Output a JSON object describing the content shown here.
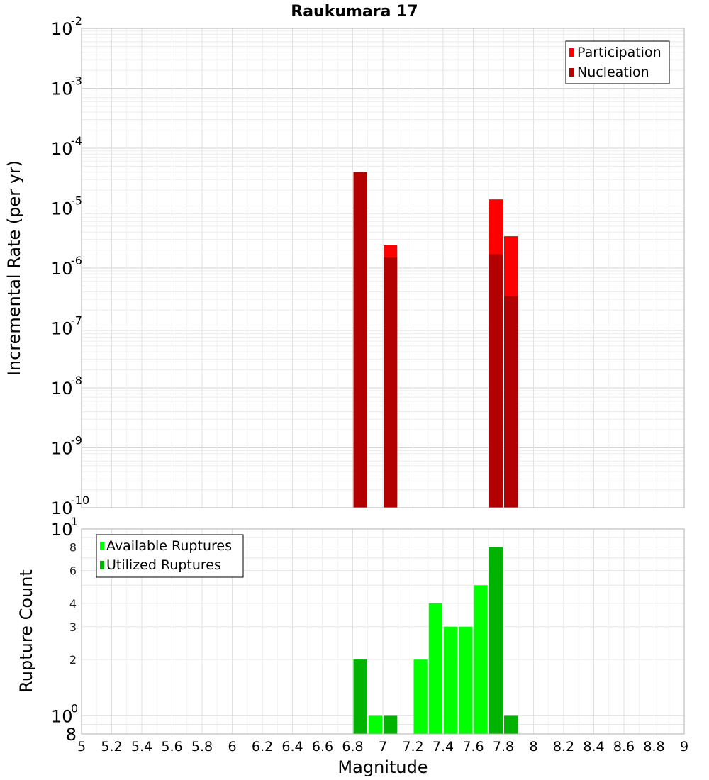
{
  "chart_data": [
    {
      "type": "bar",
      "title": "Raukumara 17",
      "ylabel": "Incremental Rate (per yr)",
      "y_scale": "log",
      "ylim": [
        1e-10,
        0.01
      ],
      "xlim": [
        5,
        9
      ],
      "y_ticks": [
        {
          "base": "10",
          "exp": "-2"
        },
        {
          "base": "10",
          "exp": "-3"
        },
        {
          "base": "10",
          "exp": "-4"
        },
        {
          "base": "10",
          "exp": "-5"
        },
        {
          "base": "10",
          "exp": "-6"
        },
        {
          "base": "10",
          "exp": "-7"
        },
        {
          "base": "10",
          "exp": "-8"
        },
        {
          "base": "10",
          "exp": "-9"
        },
        {
          "base": "10",
          "exp": "-10"
        }
      ],
      "legend_position": "top-right",
      "grid": true,
      "series": [
        {
          "name": "Participation",
          "color": "#ff0000",
          "points": [
            [
              6.85,
              4e-05
            ],
            [
              7.05,
              2.4e-06
            ],
            [
              7.75,
              1.4e-05
            ],
            [
              7.85,
              3.4e-06
            ]
          ]
        },
        {
          "name": "Nucleation",
          "color": "#b30000",
          "points": [
            [
              6.85,
              4e-05
            ],
            [
              7.05,
              1.5e-06
            ],
            [
              7.75,
              1.7e-06
            ],
            [
              7.85,
              3.4e-07
            ]
          ]
        }
      ]
    },
    {
      "type": "bar",
      "ylabel": "Rupture Count",
      "xlabel": "Magnitude",
      "y_scale": "log",
      "ylim": [
        0.8,
        10
      ],
      "xlim": [
        5,
        9
      ],
      "y_ticks_major": [
        {
          "value": 10,
          "base": "10",
          "exp": "1"
        },
        {
          "value": 1,
          "base": "10",
          "exp": "0"
        }
      ],
      "y_ticks_minor": [
        {
          "value": 8,
          "label": "8"
        },
        {
          "value": 6,
          "label": "6"
        },
        {
          "value": 4,
          "label": "4"
        },
        {
          "value": 3,
          "label": "3"
        },
        {
          "value": 2,
          "label": "2"
        }
      ],
      "y_bottom_label": "8",
      "x_ticks": [
        "5",
        "5.2",
        "5.4",
        "5.6",
        "5.8",
        "6",
        "6.2",
        "6.4",
        "6.6",
        "6.8",
        "7",
        "7.2",
        "7.4",
        "7.6",
        "7.8",
        "8",
        "8.2",
        "8.4",
        "8.6",
        "8.8",
        "9"
      ],
      "legend_position": "top-left",
      "grid": true,
      "series": [
        {
          "name": "Available Ruptures",
          "color": "#00ff00",
          "points": [
            [
              6.85,
              2
            ],
            [
              6.95,
              1
            ],
            [
              7.05,
              1
            ],
            [
              7.25,
              2
            ],
            [
              7.35,
              4
            ],
            [
              7.45,
              3
            ],
            [
              7.55,
              3
            ],
            [
              7.65,
              5
            ],
            [
              7.75,
              8
            ],
            [
              7.85,
              1
            ]
          ]
        },
        {
          "name": "Utilized Ruptures",
          "color": "#00b300",
          "points": [
            [
              6.85,
              2
            ],
            [
              7.05,
              1
            ],
            [
              7.75,
              8
            ],
            [
              7.85,
              1
            ]
          ]
        }
      ]
    }
  ]
}
